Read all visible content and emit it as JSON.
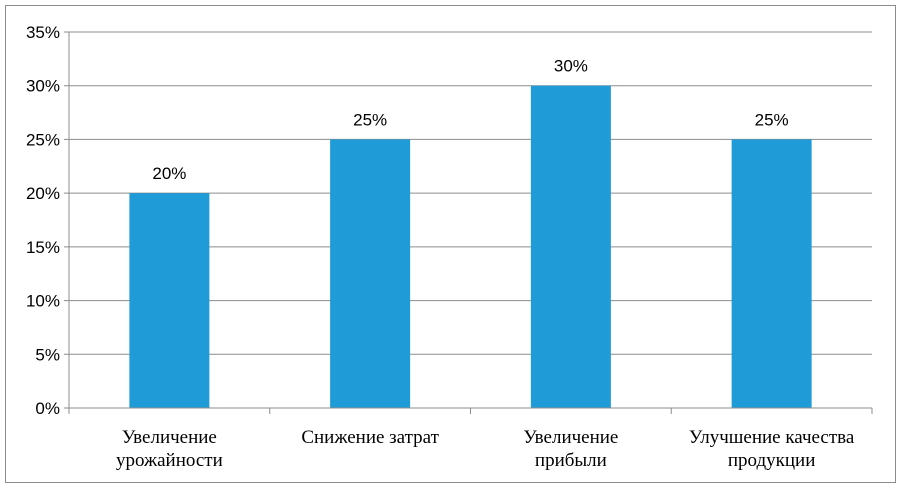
{
  "chart_data": {
    "type": "bar",
    "categories": [
      [
        "Увеличение",
        "урожайности"
      ],
      [
        "Снижение затрат"
      ],
      [
        "Увеличение",
        "прибыли"
      ],
      [
        "Улучшение качества",
        "продукции"
      ]
    ],
    "values": [
      20,
      25,
      30,
      25
    ],
    "data_labels": [
      "20%",
      "25%",
      "30%",
      "25%"
    ],
    "y_tick_values": [
      0,
      5,
      10,
      15,
      20,
      25,
      30,
      35
    ],
    "y_tick_labels": [
      "0%",
      "5%",
      "10%",
      "15%",
      "20%",
      "25%",
      "30%",
      "35%"
    ],
    "ylim": [
      0,
      35
    ],
    "grid": true,
    "legend": "none",
    "bar_color": "#1f9bd7",
    "gridline_color": "#8c8c8c",
    "title": "",
    "xlabel": "",
    "ylabel": ""
  }
}
